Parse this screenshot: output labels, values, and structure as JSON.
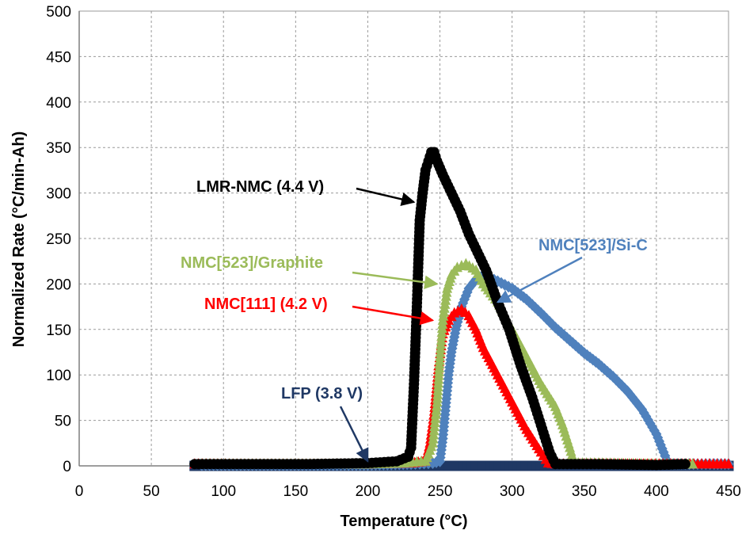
{
  "chart_data": {
    "type": "scatter",
    "title": "",
    "xlabel": "Temperature (°C)",
    "ylabel": "Normalized Rate (°C/min-Ah)",
    "xlim": [
      0,
      450
    ],
    "ylim": [
      0,
      500
    ],
    "xticks": [
      "0",
      "50",
      "100",
      "150",
      "200",
      "250",
      "300",
      "350",
      "400",
      "450"
    ],
    "yticks": [
      "0",
      "50",
      "100",
      "150",
      "200",
      "250",
      "300",
      "350",
      "400",
      "450",
      "500"
    ],
    "grid": true,
    "legend": "none",
    "series": [
      {
        "name": "LFP (3.8 V)",
        "color": "#1f3864",
        "marker": "square",
        "points": [
          [
            80,
            0
          ],
          [
            120,
            0
          ],
          [
            160,
            0
          ],
          [
            200,
            0
          ],
          [
            240,
            0
          ],
          [
            280,
            0
          ],
          [
            320,
            0
          ],
          [
            360,
            0
          ],
          [
            400,
            0
          ],
          [
            450,
            0
          ]
        ]
      },
      {
        "name": "NMC[523]/Si-C",
        "color": "#4f81bd",
        "marker": "diamond",
        "points": [
          [
            85,
            1
          ],
          [
            120,
            1
          ],
          [
            160,
            1
          ],
          [
            200,
            1
          ],
          [
            230,
            2
          ],
          [
            245,
            3
          ],
          [
            250,
            5
          ],
          [
            252,
            30
          ],
          [
            254,
            65
          ],
          [
            256,
            100
          ],
          [
            258,
            125
          ],
          [
            261,
            150
          ],
          [
            265,
            175
          ],
          [
            270,
            195
          ],
          [
            275,
            205
          ],
          [
            280,
            210
          ],
          [
            290,
            203
          ],
          [
            300,
            195
          ],
          [
            310,
            183
          ],
          [
            320,
            168
          ],
          [
            330,
            152
          ],
          [
            340,
            138
          ],
          [
            350,
            124
          ],
          [
            360,
            112
          ],
          [
            370,
            98
          ],
          [
            380,
            82
          ],
          [
            390,
            62
          ],
          [
            400,
            35
          ],
          [
            405,
            15
          ],
          [
            408,
            3
          ],
          [
            412,
            2
          ],
          [
            420,
            2
          ],
          [
            440,
            2
          ],
          [
            450,
            2
          ]
        ]
      },
      {
        "name": "NMC[111] (4.2 V)",
        "color": "#ff0000",
        "marker": "triangle",
        "points": [
          [
            80,
            2
          ],
          [
            120,
            2
          ],
          [
            160,
            2
          ],
          [
            200,
            2
          ],
          [
            230,
            3
          ],
          [
            240,
            5
          ],
          [
            243,
            25
          ],
          [
            246,
            60
          ],
          [
            249,
            110
          ],
          [
            252,
            145
          ],
          [
            256,
            160
          ],
          [
            260,
            168
          ],
          [
            265,
            172
          ],
          [
            270,
            165
          ],
          [
            275,
            150
          ],
          [
            280,
            130
          ],
          [
            290,
            100
          ],
          [
            300,
            70
          ],
          [
            310,
            40
          ],
          [
            320,
            15
          ],
          [
            325,
            3
          ],
          [
            330,
            2
          ],
          [
            350,
            2
          ],
          [
            380,
            2
          ],
          [
            410,
            2
          ],
          [
            450,
            2
          ]
        ]
      },
      {
        "name": "NMC[523]/Graphite",
        "color": "#9bbb59",
        "marker": "triangle",
        "points": [
          [
            85,
            2
          ],
          [
            120,
            2
          ],
          [
            160,
            2
          ],
          [
            200,
            2
          ],
          [
            225,
            3
          ],
          [
            240,
            5
          ],
          [
            245,
            25
          ],
          [
            248,
            70
          ],
          [
            250,
            120
          ],
          [
            252,
            160
          ],
          [
            255,
            195
          ],
          [
            258,
            210
          ],
          [
            262,
            218
          ],
          [
            268,
            222
          ],
          [
            275,
            215
          ],
          [
            280,
            200
          ],
          [
            290,
            180
          ],
          [
            300,
            150
          ],
          [
            310,
            120
          ],
          [
            320,
            90
          ],
          [
            330,
            65
          ],
          [
            335,
            45
          ],
          [
            340,
            20
          ],
          [
            343,
            3
          ],
          [
            360,
            3
          ],
          [
            400,
            2
          ],
          [
            425,
            2
          ]
        ]
      },
      {
        "name": "LMR-NMC (4.4 V)",
        "color": "#000000",
        "marker": "circle",
        "points": [
          [
            80,
            2
          ],
          [
            120,
            2
          ],
          [
            160,
            2
          ],
          [
            200,
            3
          ],
          [
            220,
            5
          ],
          [
            228,
            10
          ],
          [
            230,
            20
          ],
          [
            232,
            90
          ],
          [
            234,
            175
          ],
          [
            236,
            270
          ],
          [
            238,
            300
          ],
          [
            240,
            325
          ],
          [
            242,
            335
          ],
          [
            244,
            345
          ],
          [
            246,
            345
          ],
          [
            248,
            335
          ],
          [
            252,
            320
          ],
          [
            258,
            300
          ],
          [
            264,
            280
          ],
          [
            270,
            255
          ],
          [
            276,
            235
          ],
          [
            282,
            215
          ],
          [
            290,
            180
          ],
          [
            298,
            150
          ],
          [
            306,
            110
          ],
          [
            314,
            75
          ],
          [
            320,
            45
          ],
          [
            326,
            15
          ],
          [
            330,
            2
          ],
          [
            360,
            2
          ],
          [
            400,
            1
          ],
          [
            420,
            2
          ]
        ]
      }
    ],
    "annotations": [
      {
        "text": "LMR-NMC (4.4 V)",
        "color": "#000000",
        "target": [
          232,
          290
        ]
      },
      {
        "text": "NMC[523]/Graphite",
        "color": "#9bbb59",
        "target": [
          248,
          200
        ]
      },
      {
        "text": "NMC[111] (4.2 V)",
        "color": "#ff0000",
        "target": [
          245,
          160
        ]
      },
      {
        "text": "NMC[523]/Si-C",
        "color": "#4f81bd",
        "target": [
          290,
          180
        ]
      },
      {
        "text": "LFP (3.8 V)",
        "color": "#1f3864",
        "target": [
          200,
          5
        ]
      }
    ]
  }
}
